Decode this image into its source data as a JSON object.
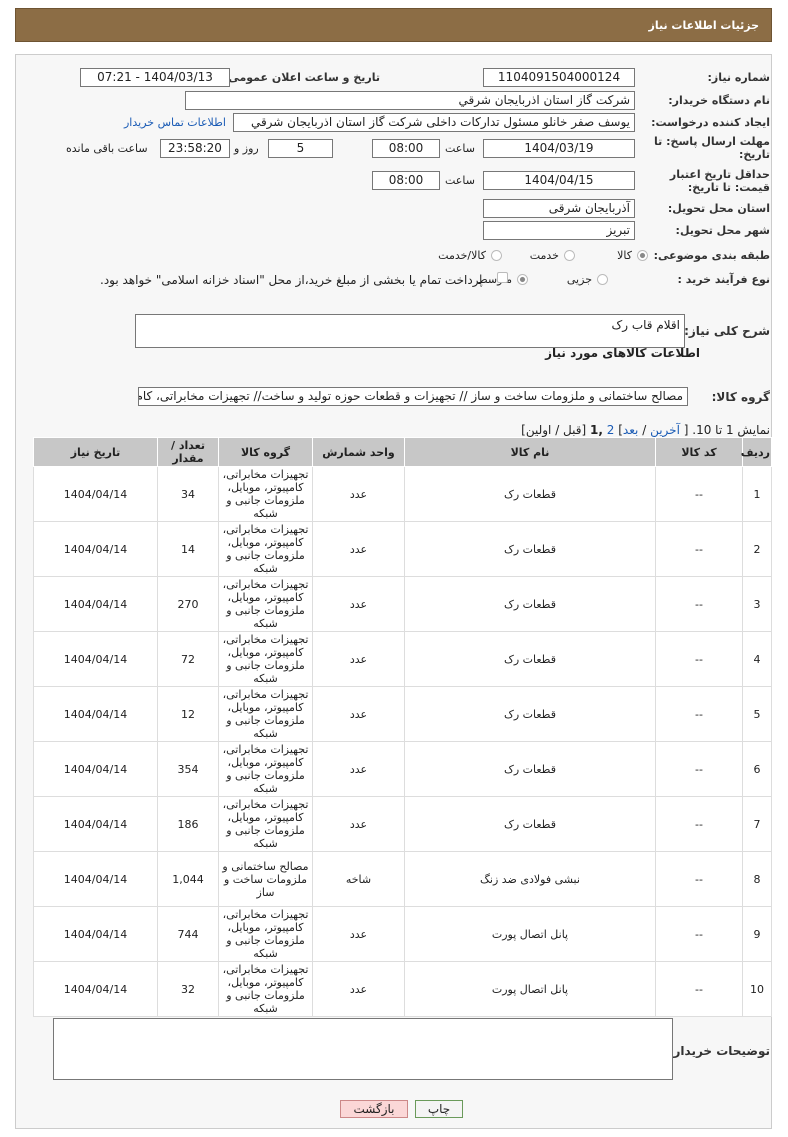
{
  "header": {
    "title": "جزئیات اطلاعات نیاز"
  },
  "form": {
    "need_number": {
      "label": "شماره نیاز:",
      "value": "1104091504000124"
    },
    "announce": {
      "label": "تاریخ و ساعت اعلان عمومی:",
      "value": "1404/03/13 - 07:21"
    },
    "buyer": {
      "label": "نام دستگاه خریدار:",
      "value": "شرکت گاز استان اذربایجان شرقي"
    },
    "creator": {
      "label": "ایجاد کننده درخواست:",
      "value": "یوسف صفر خانلو  مسئول تدارکات داخلی  شرکت گاز استان اذربایجان شرقي",
      "link": "اطلاعات تماس خریدار"
    },
    "deadline": {
      "label": "مهلت ارسال پاسخ: تا تاریخ:",
      "date": "1404/03/19",
      "time_label": "ساعت",
      "time": "08:00",
      "days": "5",
      "days_label": "روز و",
      "remaining": "23:58:20",
      "remaining_label": "ساعت باقی مانده"
    },
    "validity": {
      "label": "حداقل تاریخ اعتبار قیمت: تا تاریخ:",
      "date": "1404/04/15",
      "time_label": "ساعت",
      "time": "08:00"
    },
    "province": {
      "label": "استان محل تحویل:",
      "value": "آذربایجان شرقی"
    },
    "city": {
      "label": "شهر محل تحویل:",
      "value": "تبریز"
    },
    "category": {
      "label": "طبقه بندی موضوعی:",
      "options": [
        "کالا",
        "خدمت",
        "کالا/خدمت"
      ],
      "selected": 0
    },
    "process": {
      "label": "نوع فرآیند خرید :",
      "options": [
        "جزیی",
        "متوسط"
      ],
      "selected": 1,
      "note": "پرداخت تمام یا بخشی از مبلغ خرید،از محل \"اسناد خزانه اسلامی\" خواهد بود."
    }
  },
  "summary": {
    "label": "شرح کلی نیاز:",
    "value": "اقلام قاب رک"
  },
  "goods": {
    "title": "اطلاعات کالاهای مورد نیاز",
    "group_label": "گروه کالا:",
    "group": "مصالح ساختمانی و ملزومات ساخت و ساز // تجهیزات و قطعات حوزه تولید و ساخت// تجهیزات مخابراتی، کام"
  },
  "pagination": {
    "prefix": "نمایش 1 تا 10. [",
    "last": "آخرین",
    "sep": "/",
    "next": "بعد",
    "close": "]",
    "page2": "2",
    "current": ",1",
    "suffix": "[قبل / اولین]"
  },
  "table": {
    "headers": [
      "ردیف",
      "کد کالا",
      "نام کالا",
      "واحد شمارش",
      "گروه کالا",
      "تعداد / مقدار",
      "تاریخ نیاز"
    ],
    "rows": [
      [
        "1",
        "--",
        "قطعات رک",
        "عدد",
        "تجهیزات مخابراتی، کامپیوتر، موبایل، ملزومات جانبی و شبکه",
        "34",
        "1404/04/14"
      ],
      [
        "2",
        "--",
        "قطعات رک",
        "عدد",
        "تجهیزات مخابراتی، کامپیوتر، موبایل، ملزومات جانبی و شبکه",
        "14",
        "1404/04/14"
      ],
      [
        "3",
        "--",
        "قطعات رک",
        "عدد",
        "تجهیزات مخابراتی، کامپیوتر، موبایل، ملزومات جانبی و شبکه",
        "270",
        "1404/04/14"
      ],
      [
        "4",
        "--",
        "قطعات رک",
        "عدد",
        "تجهیزات مخابراتی، کامپیوتر، موبایل، ملزومات جانبی و شبکه",
        "72",
        "1404/04/14"
      ],
      [
        "5",
        "--",
        "قطعات رک",
        "عدد",
        "تجهیزات مخابراتی، کامپیوتر، موبایل، ملزومات جانبی و شبکه",
        "12",
        "1404/04/14"
      ],
      [
        "6",
        "--",
        "قطعات رک",
        "عدد",
        "تجهیزات مخابراتی، کامپیوتر، موبایل، ملزومات جانبی و شبکه",
        "354",
        "1404/04/14"
      ],
      [
        "7",
        "--",
        "قطعات رک",
        "عدد",
        "تجهیزات مخابراتی، کامپیوتر، موبایل، ملزومات جانبی و شبکه",
        "186",
        "1404/04/14"
      ],
      [
        "8",
        "--",
        "نبشی فولادی ضد زنگ",
        "شاخه",
        "مصالح ساختمانی و ملزومات ساخت و ساز",
        "1,044",
        "1404/04/14"
      ],
      [
        "9",
        "--",
        "پانل اتصال پورت",
        "عدد",
        "تجهیزات مخابراتی، کامپیوتر، موبایل، ملزومات جانبی و شبکه",
        "744",
        "1404/04/14"
      ],
      [
        "10",
        "--",
        "پانل اتصال پورت",
        "عدد",
        "تجهیزات مخابراتی، کامپیوتر، موبایل، ملزومات جانبی و شبکه",
        "32",
        "1404/04/14"
      ]
    ]
  },
  "notes": {
    "label": "توضیحات خریدار:"
  },
  "buttons": {
    "print": "چاپ",
    "back": "بازگشت"
  }
}
